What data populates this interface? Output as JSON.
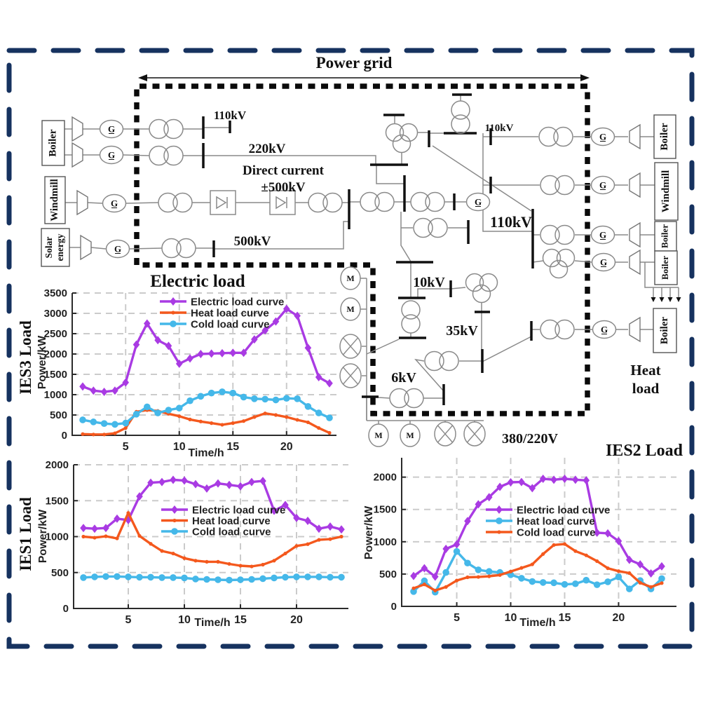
{
  "figure": {
    "title": "Power grid"
  },
  "colors": {
    "electric": "#a93be3",
    "heat": "#f4581d",
    "cold": "#45b8e9",
    "border": "#16325f"
  },
  "schematic": {
    "generator_label": "G",
    "motor_label": "M",
    "left_sources": [
      "Boiler",
      "Windmill",
      "Solar energy"
    ],
    "right_loads": [
      "Boiler",
      "Windmill",
      "Boiler",
      "Boiler",
      "Boiler"
    ],
    "labels": {
      "v110_left": "110kV",
      "v220": "220kV",
      "dc_line1": "Direct current",
      "dc_line2": "±500kV",
      "v500": "500kV",
      "v110_mid": "110kV",
      "v110_bus": "110kV",
      "v10": "10kV",
      "v35": "35kV",
      "v6": "6kV",
      "v380": "380/220V",
      "heat_line1": "Heat",
      "heat_line2": "load"
    }
  },
  "chart_data": [
    {
      "id": "ies3",
      "type": "line",
      "side_label": "IES3 Load",
      "title": "Electric load",
      "xlabel": "Time/h",
      "ylabel": "Power/kW",
      "ylim": [
        0,
        3500
      ],
      "yticks": [
        0,
        500,
        1000,
        1500,
        2000,
        2500,
        3000,
        3500
      ],
      "xticks": [
        5,
        10,
        15,
        20
      ],
      "x": [
        1,
        2,
        3,
        4,
        5,
        6,
        7,
        8,
        9,
        10,
        11,
        12,
        13,
        14,
        15,
        16,
        17,
        18,
        19,
        20,
        21,
        22,
        23,
        24
      ],
      "series": [
        {
          "name": "Electric load curve",
          "color": "#a93be3",
          "marker": "diamond",
          "values": [
            1200,
            1100,
            1070,
            1100,
            1300,
            2230,
            2750,
            2340,
            2200,
            1760,
            1890,
            2000,
            2010,
            2020,
            2030,
            2030,
            2360,
            2580,
            2800,
            3110,
            2940,
            2150,
            1430,
            1280
          ]
        },
        {
          "name": "Heat load curve",
          "color": "#f4581d",
          "marker": "dot",
          "values": [
            30,
            20,
            20,
            50,
            180,
            580,
            620,
            600,
            530,
            470,
            390,
            340,
            300,
            260,
            300,
            350,
            450,
            540,
            500,
            450,
            380,
            320,
            180,
            60
          ]
        },
        {
          "name": "Cold load curve",
          "color": "#45b8e9",
          "marker": "circle",
          "values": [
            380,
            330,
            290,
            270,
            300,
            520,
            700,
            550,
            620,
            670,
            850,
            960,
            1040,
            1070,
            1040,
            940,
            900,
            890,
            870,
            910,
            900,
            710,
            550,
            430
          ]
        }
      ]
    },
    {
      "id": "ies1",
      "type": "line",
      "side_label": "IES1 Load",
      "title": "",
      "xlabel": "Time/h",
      "ylabel": "Power/kW",
      "ylim": [
        0,
        2000
      ],
      "yticks": [
        0,
        500,
        1000,
        1500,
        2000
      ],
      "xticks": [
        5,
        10,
        15,
        20
      ],
      "x": [
        1,
        2,
        3,
        4,
        5,
        6,
        7,
        8,
        9,
        10,
        11,
        12,
        13,
        14,
        15,
        16,
        17,
        18,
        19,
        20,
        21,
        22,
        23,
        24
      ],
      "series": [
        {
          "name": "Electric load curve",
          "color": "#a93be3",
          "marker": "diamond",
          "values": [
            1120,
            1110,
            1120,
            1250,
            1230,
            1560,
            1750,
            1760,
            1790,
            1780,
            1730,
            1670,
            1740,
            1720,
            1700,
            1760,
            1775,
            1360,
            1440,
            1260,
            1220,
            1110,
            1140,
            1100
          ]
        },
        {
          "name": "Heat load curve",
          "color": "#f4581d",
          "marker": "dot",
          "values": [
            1000,
            985,
            1005,
            975,
            1330,
            1010,
            900,
            800,
            765,
            700,
            665,
            650,
            650,
            620,
            595,
            585,
            610,
            665,
            765,
            870,
            895,
            955,
            965,
            1000
          ]
        },
        {
          "name": "Cold load curve",
          "color": "#45b8e9",
          "marker": "circle",
          "values": [
            430,
            440,
            445,
            445,
            440,
            435,
            435,
            430,
            430,
            425,
            410,
            405,
            400,
            395,
            400,
            405,
            415,
            425,
            435,
            440,
            440,
            440,
            435,
            435
          ]
        }
      ]
    },
    {
      "id": "ies2",
      "type": "line",
      "side_label": "",
      "title": "IES2 Load",
      "xlabel": "Time/h",
      "ylabel": "Power/kW",
      "ylim": [
        0,
        2300
      ],
      "yticks": [
        0,
        500,
        1000,
        1500,
        2000
      ],
      "xticks": [
        5,
        10,
        15,
        20
      ],
      "x": [
        1,
        2,
        3,
        4,
        5,
        6,
        7,
        8,
        9,
        10,
        11,
        12,
        13,
        14,
        15,
        16,
        17,
        18,
        19,
        20,
        21,
        22,
        23,
        24
      ],
      "series": [
        {
          "name": "Electric load curve",
          "color": "#a93be3",
          "marker": "diamond",
          "values": [
            470,
            590,
            460,
            890,
            960,
            1320,
            1580,
            1690,
            1850,
            1920,
            1925,
            1830,
            1975,
            1960,
            1975,
            1960,
            1950,
            1140,
            1130,
            1010,
            720,
            650,
            510,
            620
          ]
        },
        {
          "name": "Heat load curve",
          "color": "#45b8e9",
          "marker": "circle",
          "values": [
            230,
            395,
            220,
            525,
            850,
            670,
            565,
            540,
            525,
            490,
            435,
            385,
            370,
            365,
            340,
            350,
            405,
            335,
            380,
            455,
            270,
            400,
            270,
            430
          ]
        },
        {
          "name": "Cold load curve",
          "color": "#f4581d",
          "marker": "dot",
          "values": [
            280,
            340,
            245,
            300,
            400,
            450,
            455,
            465,
            485,
            540,
            595,
            650,
            810,
            950,
            965,
            855,
            790,
            700,
            590,
            545,
            515,
            365,
            300,
            360
          ]
        }
      ]
    }
  ]
}
